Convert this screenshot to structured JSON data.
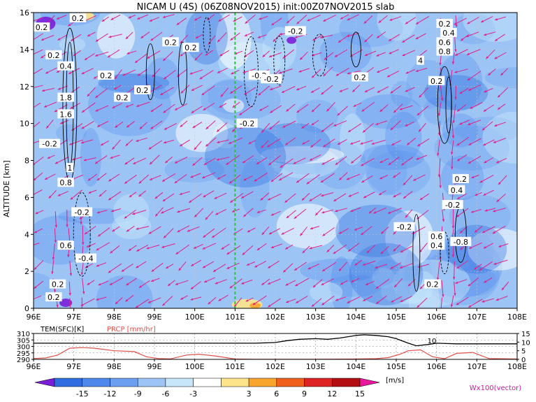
{
  "chart_data": [
    {
      "type": "heatmap",
      "title": "NICAM U (4S) (06Z08NOV2015) init:00Z07NOV2015 slab",
      "ylabel": "ALTITUDE [km]",
      "xlabel": "",
      "x_ticks": [
        "96E",
        "97E",
        "98E",
        "99E",
        "100E",
        "101E",
        "102E",
        "103E",
        "104E",
        "105E",
        "106E",
        "107E",
        "108E"
      ],
      "y_ticks": [
        "0",
        "2",
        "4",
        "6",
        "8",
        "10",
        "12",
        "14",
        "16"
      ],
      "xlim": [
        96,
        108
      ],
      "ylim": [
        0,
        16
      ],
      "grid": true,
      "marker_line_lon": 101,
      "contour_labels": [
        {
          "text": "0.2",
          "lon": 96.2,
          "alt": 15.2
        },
        {
          "text": "0.2",
          "lon": 96.5,
          "alt": 13.7
        },
        {
          "text": "0.4",
          "lon": 96.8,
          "alt": 13.1
        },
        {
          "text": "0.2",
          "lon": 97.1,
          "alt": 15.7
        },
        {
          "text": "0.2",
          "lon": 97.8,
          "alt": 12.6
        },
        {
          "text": "0.2",
          "lon": 99.4,
          "alt": 14.4
        },
        {
          "text": "0.2",
          "lon": 99.9,
          "alt": 14.1
        },
        {
          "text": "0.2",
          "lon": 98.2,
          "alt": 11.4
        },
        {
          "text": "0.2",
          "lon": 98.7,
          "alt": 11.8
        },
        {
          "text": "1.8",
          "lon": 96.8,
          "alt": 11.4
        },
        {
          "text": "1.6",
          "lon": 96.8,
          "alt": 10.5
        },
        {
          "text": "-0.2",
          "lon": 96.4,
          "alt": 8.9
        },
        {
          "text": "1",
          "lon": 96.9,
          "alt": 7.6
        },
        {
          "text": "0.8",
          "lon": 96.8,
          "alt": 6.8
        },
        {
          "text": "-0.2",
          "lon": 97.2,
          "alt": 5.2
        },
        {
          "text": "0.6",
          "lon": 96.8,
          "alt": 3.4
        },
        {
          "text": "-0.4",
          "lon": 97.3,
          "alt": 2.7
        },
        {
          "text": "0.2",
          "lon": 96.6,
          "alt": 1.3
        },
        {
          "text": "0.2",
          "lon": 96.5,
          "alt": 0.6
        },
        {
          "text": "-0.2",
          "lon": 101.3,
          "alt": 10.0
        },
        {
          "text": "-0.2",
          "lon": 101.6,
          "alt": 12.6
        },
        {
          "text": "-0.2",
          "lon": 101.9,
          "alt": 12.4
        },
        {
          "text": "-0.2",
          "lon": 102.5,
          "alt": 15.0
        },
        {
          "text": "0.2",
          "lon": 104.1,
          "alt": 12.5
        },
        {
          "text": "-0.2",
          "lon": 105.2,
          "alt": 4.4
        },
        {
          "text": "4",
          "lon": 105.6,
          "alt": 13.4
        },
        {
          "text": "0.2",
          "lon": 106.2,
          "alt": 15.4
        },
        {
          "text": "0.4",
          "lon": 106.3,
          "alt": 14.9
        },
        {
          "text": "0.6",
          "lon": 106.2,
          "alt": 14.4
        },
        {
          "text": "0.8",
          "lon": 106.2,
          "alt": 13.9
        },
        {
          "text": "0.2",
          "lon": 106.0,
          "alt": 12.3
        },
        {
          "text": "0.2",
          "lon": 106.6,
          "alt": 7.0
        },
        {
          "text": "0.4",
          "lon": 106.5,
          "alt": 6.4
        },
        {
          "text": "-0.2",
          "lon": 106.4,
          "alt": 5.6
        },
        {
          "text": "0.6",
          "lon": 106.0,
          "alt": 3.9
        },
        {
          "text": "0.4",
          "lon": 106.0,
          "alt": 3.4
        },
        {
          "text": "-0.8",
          "lon": 106.6,
          "alt": 3.6
        },
        {
          "text": "0.2",
          "lon": 105.9,
          "alt": 1.3
        }
      ]
    },
    {
      "type": "line",
      "x_ticks": [
        "96E",
        "97E",
        "98E",
        "99E",
        "100E",
        "101E",
        "102E",
        "103E",
        "104E",
        "105E",
        "106E",
        "107E",
        "108E"
      ],
      "xlim": [
        96,
        108
      ],
      "left_axis_label": "TEM(SFC)[K]",
      "left_ticks": [
        "290",
        "295",
        "300",
        "305",
        "310"
      ],
      "left_range": [
        290,
        310
      ],
      "right_axis_label": "PRCP [mm/hr]",
      "right_ticks": [
        "0",
        "5",
        "10",
        "15"
      ],
      "right_range": [
        0,
        15
      ],
      "inline_label": "10",
      "series": [
        {
          "name": "TEM(SFC)[K]",
          "color": "#000000",
          "axis": "left",
          "x": [
            96,
            96.5,
            97,
            97.5,
            98,
            98.5,
            99,
            99.5,
            100,
            100.5,
            101,
            101.5,
            102,
            102.3,
            102.6,
            103,
            103.3,
            103.6,
            104,
            104.2,
            104.5,
            104.8,
            105,
            105.3,
            105.5,
            105.8,
            106,
            106.5,
            107,
            107.5,
            108
          ],
          "y": [
            302.5,
            302.5,
            302.5,
            302.5,
            302.5,
            302.5,
            302.5,
            302.5,
            302.5,
            302.5,
            302.5,
            302.5,
            303.0,
            304.5,
            305.5,
            306.0,
            305.5,
            306.5,
            308.5,
            309.0,
            308.5,
            307.5,
            306.0,
            302.5,
            300.5,
            301.5,
            302.5,
            302.0,
            302.0,
            302.0,
            302.0
          ]
        },
        {
          "name": "PRCP [mm/hr]",
          "color": "#e0504a",
          "axis": "right",
          "x": [
            96,
            96.3,
            96.6,
            96.9,
            97.2,
            97.5,
            98,
            98.5,
            98.8,
            99.1,
            99.4,
            99.8,
            100.1,
            100.5,
            101,
            101.5,
            102,
            103,
            104,
            104.5,
            104.8,
            105.1,
            105.3,
            105.6,
            105.9,
            106.2,
            106.5,
            106.9,
            107.3,
            108
          ],
          "y": [
            0.5,
            0.8,
            2.5,
            6.5,
            6.8,
            6.5,
            5.0,
            4.5,
            1.5,
            0.5,
            0.3,
            2.5,
            3.0,
            2.0,
            0.2,
            0.1,
            0.1,
            0.1,
            0.2,
            0.4,
            1.0,
            3.0,
            5.0,
            5.5,
            1.5,
            0.4,
            3.5,
            4.0,
            0.5,
            0.2
          ]
        }
      ]
    },
    {
      "type": "colorbar",
      "tick_labels": [
        "-15",
        "-12",
        "-9",
        "-6",
        "-3",
        "3",
        "6",
        "9",
        "12",
        "15"
      ],
      "unit": "[m/s]",
      "colors": [
        "#7b1ed8",
        "#2f6de0",
        "#4d88ea",
        "#6c9ff0",
        "#9cc5f5",
        "#c8e6fa",
        "#ffffff",
        "#fde48a",
        "#f8a52e",
        "#f0601c",
        "#dd2323",
        "#b30e12",
        "#e8189c"
      ]
    }
  ],
  "vector_legend": "Wx100(vector)",
  "colors": {
    "frame": "#000000",
    "grid": "#c8c8c8",
    "marker_line": "#2cc243",
    "vector": "#e0208a",
    "temp_line": "#000000",
    "prcp_line": "#e0504a",
    "prcp_label": "#e0504a",
    "vector_legend": "#d0169e"
  }
}
